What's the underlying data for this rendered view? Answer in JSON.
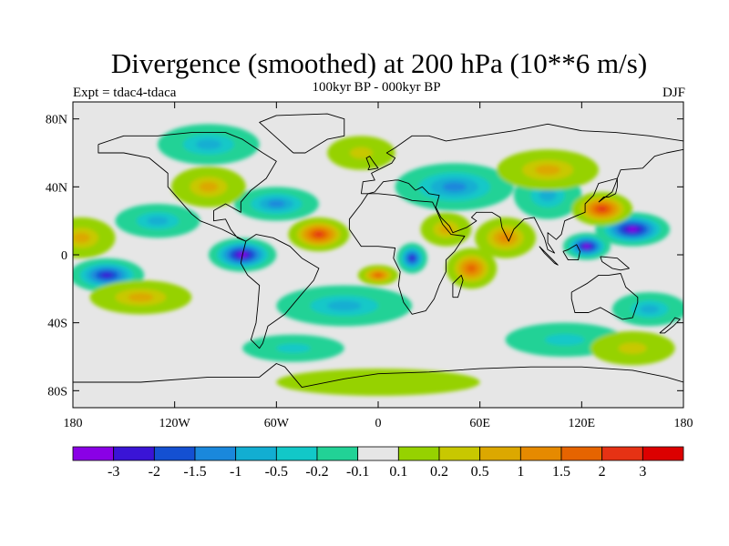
{
  "header": {
    "title": "Divergence (smoothed) at 200 hPa (10**6 m/s)",
    "subtitle": "100kyr BP - 000kyr BP",
    "experiment": "Expt = tdac4-tdaca",
    "season": "DJF"
  },
  "map": {
    "lon_range": [
      -180,
      180
    ],
    "lat_range": [
      -90,
      90
    ],
    "x_ticks": [
      {
        "value": -180,
        "label": "180"
      },
      {
        "value": -120,
        "label": "120W"
      },
      {
        "value": -60,
        "label": "60W"
      },
      {
        "value": 0,
        "label": "0"
      },
      {
        "value": 60,
        "label": "60E"
      },
      {
        "value": 120,
        "label": "120E"
      },
      {
        "value": 180,
        "label": "180"
      }
    ],
    "y_ticks": [
      {
        "value": 80,
        "label": "80N"
      },
      {
        "value": 40,
        "label": "40N"
      },
      {
        "value": 0,
        "label": "0"
      },
      {
        "value": -40,
        "label": "40S"
      },
      {
        "value": -80,
        "label": "80S"
      }
    ],
    "background_color": "#e6e6e6",
    "blobs": [
      {
        "lon": 150,
        "lat": 15,
        "rx": 22,
        "ry": 10,
        "v": -3.2
      },
      {
        "lon": 123,
        "lat": 5,
        "rx": 14,
        "ry": 8,
        "v": -3.0
      },
      {
        "lon": -80,
        "lat": 0,
        "rx": 20,
        "ry": 10,
        "v": -3.0
      },
      {
        "lon": -160,
        "lat": -12,
        "rx": 22,
        "ry": 10,
        "v": -2.2
      },
      {
        "lon": 20,
        "lat": -2,
        "rx": 9,
        "ry": 9,
        "v": -2.4
      },
      {
        "lon": 45,
        "lat": 40,
        "rx": 35,
        "ry": 14,
        "v": -1.2
      },
      {
        "lon": -60,
        "lat": 30,
        "rx": 25,
        "ry": 10,
        "v": -1.2
      },
      {
        "lon": -130,
        "lat": 20,
        "rx": 25,
        "ry": 10,
        "v": -0.8
      },
      {
        "lon": -20,
        "lat": -30,
        "rx": 40,
        "ry": 12,
        "v": -0.7
      },
      {
        "lon": -100,
        "lat": 65,
        "rx": 30,
        "ry": 12,
        "v": -0.8
      },
      {
        "lon": 160,
        "lat": -32,
        "rx": 22,
        "ry": 10,
        "v": -0.8
      },
      {
        "lon": 100,
        "lat": 35,
        "rx": 20,
        "ry": 14,
        "v": -0.6
      },
      {
        "lon": 110,
        "lat": -50,
        "rx": 35,
        "ry": 10,
        "v": -0.4
      },
      {
        "lon": -50,
        "lat": -55,
        "rx": 30,
        "ry": 8,
        "v": -0.4
      },
      {
        "lon": -35,
        "lat": 12,
        "rx": 18,
        "ry": 10,
        "v": 2.3
      },
      {
        "lon": 132,
        "lat": 27,
        "rx": 18,
        "ry": 10,
        "v": 2.0
      },
      {
        "lon": 55,
        "lat": -8,
        "rx": 15,
        "ry": 12,
        "v": 1.8
      },
      {
        "lon": 75,
        "lat": 10,
        "rx": 18,
        "ry": 12,
        "v": 1.0
      },
      {
        "lon": 100,
        "lat": 50,
        "rx": 30,
        "ry": 12,
        "v": 0.6
      },
      {
        "lon": -100,
        "lat": 40,
        "rx": 22,
        "ry": 12,
        "v": 0.5
      },
      {
        "lon": -140,
        "lat": -25,
        "rx": 30,
        "ry": 10,
        "v": 0.6
      },
      {
        "lon": -175,
        "lat": 10,
        "rx": 20,
        "ry": 12,
        "v": 0.5
      },
      {
        "lon": 0,
        "lat": -12,
        "rx": 12,
        "ry": 6,
        "v": 1.5
      },
      {
        "lon": 40,
        "lat": 15,
        "rx": 15,
        "ry": 10,
        "v": 0.8
      },
      {
        "lon": -10,
        "lat": 60,
        "rx": 20,
        "ry": 10,
        "v": 0.3
      },
      {
        "lon": 0,
        "lat": -75,
        "rx": 60,
        "ry": 8,
        "v": 0.15
      },
      {
        "lon": 150,
        "lat": -55,
        "rx": 25,
        "ry": 10,
        "v": 0.3
      }
    ],
    "coastlines": [
      [
        [
          -165,
          65
        ],
        [
          -150,
          70
        ],
        [
          -130,
          70
        ],
        [
          -110,
          72
        ],
        [
          -90,
          72
        ],
        [
          -80,
          68
        ],
        [
          -68,
          60
        ],
        [
          -60,
          55
        ],
        [
          -66,
          45
        ],
        [
          -75,
          38
        ],
        [
          -81,
          31
        ],
        [
          -81,
          25
        ],
        [
          -90,
          30
        ],
        [
          -97,
          26
        ],
        [
          -97,
          20
        ],
        [
          -90,
          21
        ],
        [
          -87,
          15
        ],
        [
          -83,
          10
        ],
        [
          -78,
          8
        ],
        [
          -92,
          15
        ],
        [
          -105,
          20
        ],
        [
          -110,
          24
        ],
        [
          -117,
          32
        ],
        [
          -124,
          40
        ],
        [
          -124,
          48
        ],
        [
          -135,
          57
        ],
        [
          -150,
          60
        ],
        [
          -165,
          60
        ],
        [
          -165,
          65
        ]
      ],
      [
        [
          -78,
          8
        ],
        [
          -72,
          12
        ],
        [
          -62,
          10
        ],
        [
          -52,
          5
        ],
        [
          -45,
          -2
        ],
        [
          -35,
          -8
        ],
        [
          -38,
          -15
        ],
        [
          -45,
          -23
        ],
        [
          -55,
          -35
        ],
        [
          -65,
          -42
        ],
        [
          -68,
          -52
        ],
        [
          -70,
          -55
        ],
        [
          -75,
          -50
        ],
        [
          -72,
          -40
        ],
        [
          -71,
          -30
        ],
        [
          -70,
          -18
        ],
        [
          -77,
          -12
        ],
        [
          -81,
          -5
        ],
        [
          -80,
          0
        ],
        [
          -78,
          8
        ]
      ],
      [
        [
          -17,
          15
        ],
        [
          -10,
          5
        ],
        [
          0,
          5
        ],
        [
          10,
          4
        ],
        [
          9,
          -2
        ],
        [
          13,
          -10
        ],
        [
          12,
          -18
        ],
        [
          15,
          -28
        ],
        [
          20,
          -35
        ],
        [
          28,
          -33
        ],
        [
          33,
          -26
        ],
        [
          36,
          -18
        ],
        [
          40,
          -10
        ],
        [
          40,
          -3
        ],
        [
          45,
          2
        ],
        [
          51,
          11
        ],
        [
          43,
          12
        ],
        [
          38,
          18
        ],
        [
          34,
          27
        ],
        [
          32,
          31
        ],
        [
          20,
          32
        ],
        [
          10,
          35
        ],
        [
          0,
          36
        ],
        [
          -6,
          36
        ],
        [
          -10,
          30
        ],
        [
          -17,
          21
        ],
        [
          -17,
          15
        ]
      ],
      [
        [
          -10,
          36
        ],
        [
          -9,
          43
        ],
        [
          -2,
          44
        ],
        [
          -4,
          48
        ],
        [
          2,
          51
        ],
        [
          8,
          54
        ],
        [
          10,
          57
        ],
        [
          5,
          60
        ],
        [
          10,
          63
        ],
        [
          20,
          70
        ],
        [
          30,
          70
        ],
        [
          40,
          67
        ],
        [
          60,
          70
        ],
        [
          80,
          73
        ],
        [
          100,
          77
        ],
        [
          120,
          73
        ],
        [
          140,
          72
        ],
        [
          160,
          70
        ],
        [
          180,
          67
        ],
        [
          180,
          62
        ],
        [
          170,
          60
        ],
        [
          163,
          58
        ],
        [
          156,
          51
        ],
        [
          143,
          50
        ],
        [
          141,
          45
        ],
        [
          130,
          42
        ],
        [
          127,
          35
        ],
        [
          122,
          30
        ],
        [
          122,
          25
        ],
        [
          117,
          23
        ],
        [
          110,
          20
        ],
        [
          108,
          12
        ],
        [
          105,
          9
        ],
        [
          100,
          13
        ],
        [
          100,
          7
        ],
        [
          104,
          1
        ],
        [
          100,
          3
        ],
        [
          98,
          10
        ],
        [
          95,
          16
        ],
        [
          92,
          22
        ],
        [
          86,
          21
        ],
        [
          80,
          15
        ],
        [
          77,
          8
        ],
        [
          73,
          16
        ],
        [
          72,
          22
        ],
        [
          67,
          25
        ],
        [
          58,
          25
        ],
        [
          55,
          22
        ],
        [
          58,
          20
        ],
        [
          52,
          16
        ],
        [
          44,
          13
        ],
        [
          42,
          17
        ],
        [
          37,
          22
        ],
        [
          34,
          28
        ],
        [
          36,
          35
        ],
        [
          30,
          36
        ],
        [
          26,
          40
        ],
        [
          22,
          38
        ],
        [
          20,
          40
        ],
        [
          18,
          42
        ],
        [
          12,
          44
        ],
        [
          10,
          44
        ],
        [
          3,
          43
        ],
        [
          -2,
          37
        ],
        [
          -6,
          36
        ],
        [
          -10,
          36
        ]
      ],
      [
        [
          114,
          -22
        ],
        [
          114,
          -26
        ],
        [
          116,
          -34
        ],
        [
          124,
          -34
        ],
        [
          131,
          -31
        ],
        [
          138,
          -35
        ],
        [
          144,
          -38
        ],
        [
          150,
          -37
        ],
        [
          153,
          -28
        ],
        [
          153,
          -25
        ],
        [
          146,
          -19
        ],
        [
          143,
          -11
        ],
        [
          136,
          -12
        ],
        [
          130,
          -12
        ],
        [
          123,
          -17
        ],
        [
          114,
          -22
        ]
      ],
      [
        [
          -50,
          60
        ],
        [
          -60,
          69
        ],
        [
          -70,
          78
        ],
        [
          -60,
          82
        ],
        [
          -30,
          83
        ],
        [
          -20,
          80
        ],
        [
          -20,
          70
        ],
        [
          -30,
          68
        ],
        [
          -43,
          60
        ],
        [
          -50,
          60
        ]
      ],
      [
        [
          -180,
          -75
        ],
        [
          -140,
          -75
        ],
        [
          -100,
          -72
        ],
        [
          -70,
          -72
        ],
        [
          -60,
          -64
        ],
        [
          -55,
          -66
        ],
        [
          -45,
          -78
        ],
        [
          -20,
          -73
        ],
        [
          0,
          -70
        ],
        [
          30,
          -69
        ],
        [
          60,
          -67
        ],
        [
          90,
          -66
        ],
        [
          120,
          -66
        ],
        [
          150,
          -68
        ],
        [
          170,
          -72
        ],
        [
          180,
          -75
        ]
      ],
      [
        [
          -6,
          50
        ],
        [
          0,
          51
        ],
        [
          -3,
          55
        ],
        [
          -5,
          58
        ],
        [
          -7,
          57
        ],
        [
          -5,
          52
        ],
        [
          -6,
          50
        ]
      ],
      [
        [
          130,
          31
        ],
        [
          133,
          34
        ],
        [
          136,
          34
        ],
        [
          140,
          36
        ],
        [
          141,
          40
        ],
        [
          141,
          45
        ],
        [
          140,
          42
        ],
        [
          138,
          37
        ],
        [
          134,
          34
        ],
        [
          130,
          31
        ]
      ],
      [
        [
          95,
          5
        ],
        [
          102,
          -2
        ],
        [
          106,
          -6
        ],
        [
          104,
          -5
        ],
        [
          98,
          1
        ],
        [
          95,
          5
        ]
      ],
      [
        [
          109,
          2
        ],
        [
          112,
          -3
        ],
        [
          118,
          -3
        ],
        [
          119,
          2
        ],
        [
          117,
          6
        ],
        [
          112,
          3
        ],
        [
          109,
          2
        ]
      ],
      [
        [
          131,
          -1
        ],
        [
          141,
          -2
        ],
        [
          148,
          -8
        ],
        [
          143,
          -9
        ],
        [
          138,
          -8
        ],
        [
          132,
          -4
        ],
        [
          131,
          -1
        ]
      ],
      [
        [
          44,
          -25
        ],
        [
          47,
          -25
        ],
        [
          50,
          -15
        ],
        [
          49,
          -12
        ],
        [
          44,
          -17
        ],
        [
          44,
          -25
        ]
      ],
      [
        [
          166,
          -46
        ],
        [
          172,
          -41
        ],
        [
          175,
          -37
        ],
        [
          178,
          -38
        ],
        [
          174,
          -42
        ],
        [
          169,
          -46
        ],
        [
          166,
          -46
        ]
      ]
    ]
  },
  "colorbar": {
    "colors": [
      "#8a00e6",
      "#3a14d6",
      "#1450d2",
      "#1a88dc",
      "#12aed2",
      "#12c8c8",
      "#22d296",
      "#e6e6e6",
      "#96d200",
      "#c8c800",
      "#dca800",
      "#e68a00",
      "#e66400",
      "#e63214",
      "#dc0000"
    ],
    "levels": [
      -3,
      -2,
      -1.5,
      -1,
      -0.5,
      -0.2,
      -0.1,
      0.1,
      0.2,
      0.5,
      1,
      1.5,
      2,
      3
    ],
    "labels": [
      "-3",
      "-2",
      "-1.5",
      "-1",
      "-0.5",
      "-0.2",
      "-0.1",
      "0.1",
      "0.2",
      "0.5",
      "1",
      "1.5",
      "2",
      "3"
    ]
  }
}
